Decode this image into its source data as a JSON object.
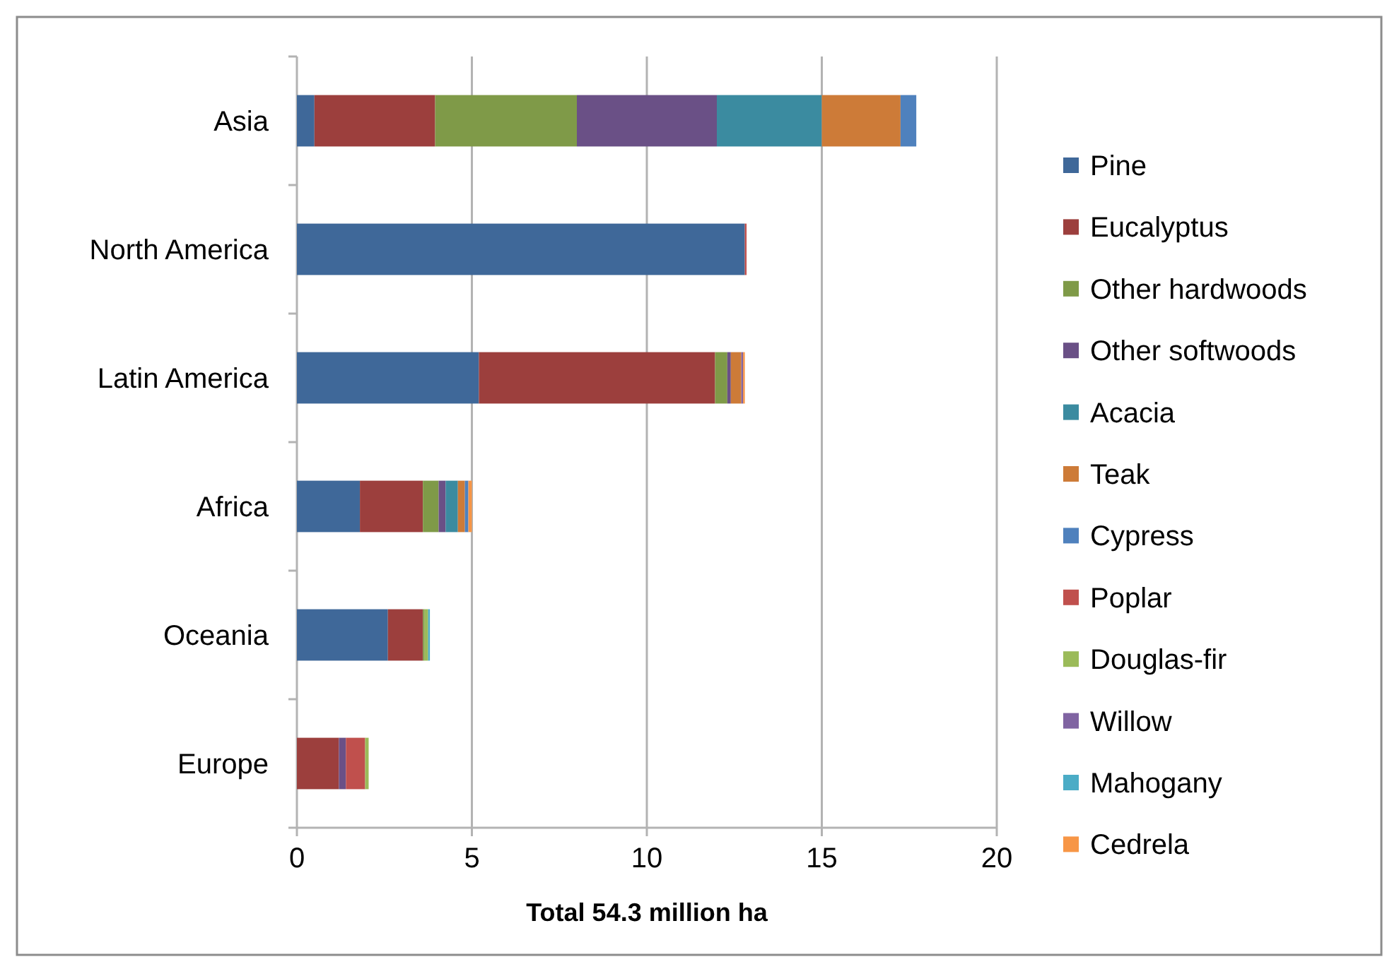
{
  "chart_data": {
    "type": "bar",
    "orientation": "horizontal",
    "stacked": true,
    "categories": [
      "Asia",
      "North America",
      "Latin America",
      "Africa",
      "Oceania",
      "Europe"
    ],
    "series": [
      {
        "name": "Pine",
        "color": "#3f6899",
        "values": [
          0.5,
          12.8,
          5.2,
          1.8,
          2.6,
          null
        ]
      },
      {
        "name": "Eucalyptus",
        "color": "#9c3f3d",
        "values": [
          3.45,
          null,
          6.75,
          1.8,
          1.0,
          1.2
        ]
      },
      {
        "name": "Other hardwoods",
        "color": "#7f9a48",
        "values": [
          4.05,
          null,
          0.35,
          0.45,
          0.05,
          null
        ]
      },
      {
        "name": "Other softwoods",
        "color": "#6a5086",
        "values": [
          4.0,
          null,
          0.1,
          0.2,
          null,
          0.2
        ]
      },
      {
        "name": "Acacia",
        "color": "#3b8ba0",
        "values": [
          3.0,
          null,
          null,
          0.35,
          null,
          null
        ]
      },
      {
        "name": "Teak",
        "color": "#cd7b38",
        "values": [
          2.25,
          null,
          0.3,
          0.2,
          null,
          null
        ]
      },
      {
        "name": "Cypress",
        "color": "#4f81bd",
        "values": [
          0.45,
          null,
          null,
          0.1,
          null,
          null
        ]
      },
      {
        "name": "Poplar",
        "color": "#c0504d",
        "values": [
          null,
          0.05,
          null,
          null,
          null,
          0.55
        ]
      },
      {
        "name": "Douglas-fir",
        "color": "#9bbb59",
        "values": [
          null,
          null,
          null,
          null,
          0.1,
          0.1
        ]
      },
      {
        "name": "Willow",
        "color": "#8064a2",
        "values": [
          null,
          null,
          0.05,
          null,
          null,
          null
        ]
      },
      {
        "name": "Mahogany",
        "color": "#4bacc6",
        "values": [
          null,
          null,
          null,
          null,
          0.05,
          null
        ]
      },
      {
        "name": "Cedrela",
        "color": "#f79646",
        "values": [
          null,
          null,
          0.05,
          0.1,
          null,
          null
        ]
      }
    ],
    "xlim": [
      0,
      20
    ],
    "xticks": [
      0,
      5,
      10,
      15,
      20
    ],
    "xlabel": "Total 54.3 million ha",
    "grid": "x",
    "legend": "right"
  }
}
